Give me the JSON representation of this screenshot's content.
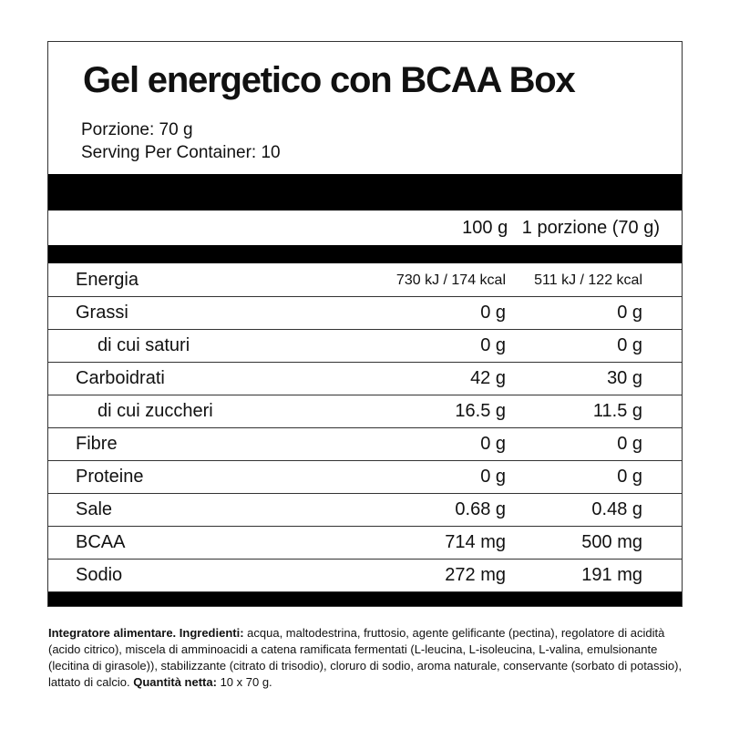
{
  "title": "Gel energetico con BCAA Box",
  "portion": "Porzione: 70 g",
  "servings": "Serving Per Container: 10",
  "columns": {
    "per100": "100 g",
    "perPortion": "1 porzione (70 g)"
  },
  "rows": [
    {
      "label": "Energia",
      "v100": "730 kJ / 174 kcal",
      "vPortion": "511 kJ / 122 kcal"
    },
    {
      "label": "Grassi",
      "v100": "0 g",
      "vPortion": "0 g"
    },
    {
      "label": "di cui saturi",
      "v100": "0 g",
      "vPortion": "0 g"
    },
    {
      "label": "Carboidrati",
      "v100": "42 g",
      "vPortion": "30 g"
    },
    {
      "label": "di cui zuccheri",
      "v100": "16.5 g",
      "vPortion": "11.5 g"
    },
    {
      "label": "Fibre",
      "v100": "0 g",
      "vPortion": "0 g"
    },
    {
      "label": "Proteine",
      "v100": "0 g",
      "vPortion": "0 g"
    },
    {
      "label": "Sale",
      "v100": "0.68 g",
      "vPortion": "0.48 g"
    },
    {
      "label": "BCAA",
      "v100": "714 mg",
      "vPortion": "500 mg"
    },
    {
      "label": "Sodio",
      "v100": "272 mg",
      "vPortion": "191 mg"
    }
  ],
  "ingredients": {
    "lead": "Integratore alimentare. Ingredienti:",
    "text": " acqua, maltodestrina, fruttosio, agente gelificante (pectina), regolatore di acidità (acido citrico), miscela di amminoacidi a catena ramificata fermentati (L-leucina, L-isoleucina, L-valina, emulsionante (lecitina di girasole)), stabilizzante (citrato di trisodio), cloruro di sodio, aroma naturale, conservante (sorbato di potassio), lattato di calcio. ",
    "net_label": "Quantità netta:",
    "net_value": " 10 x 70 g."
  }
}
